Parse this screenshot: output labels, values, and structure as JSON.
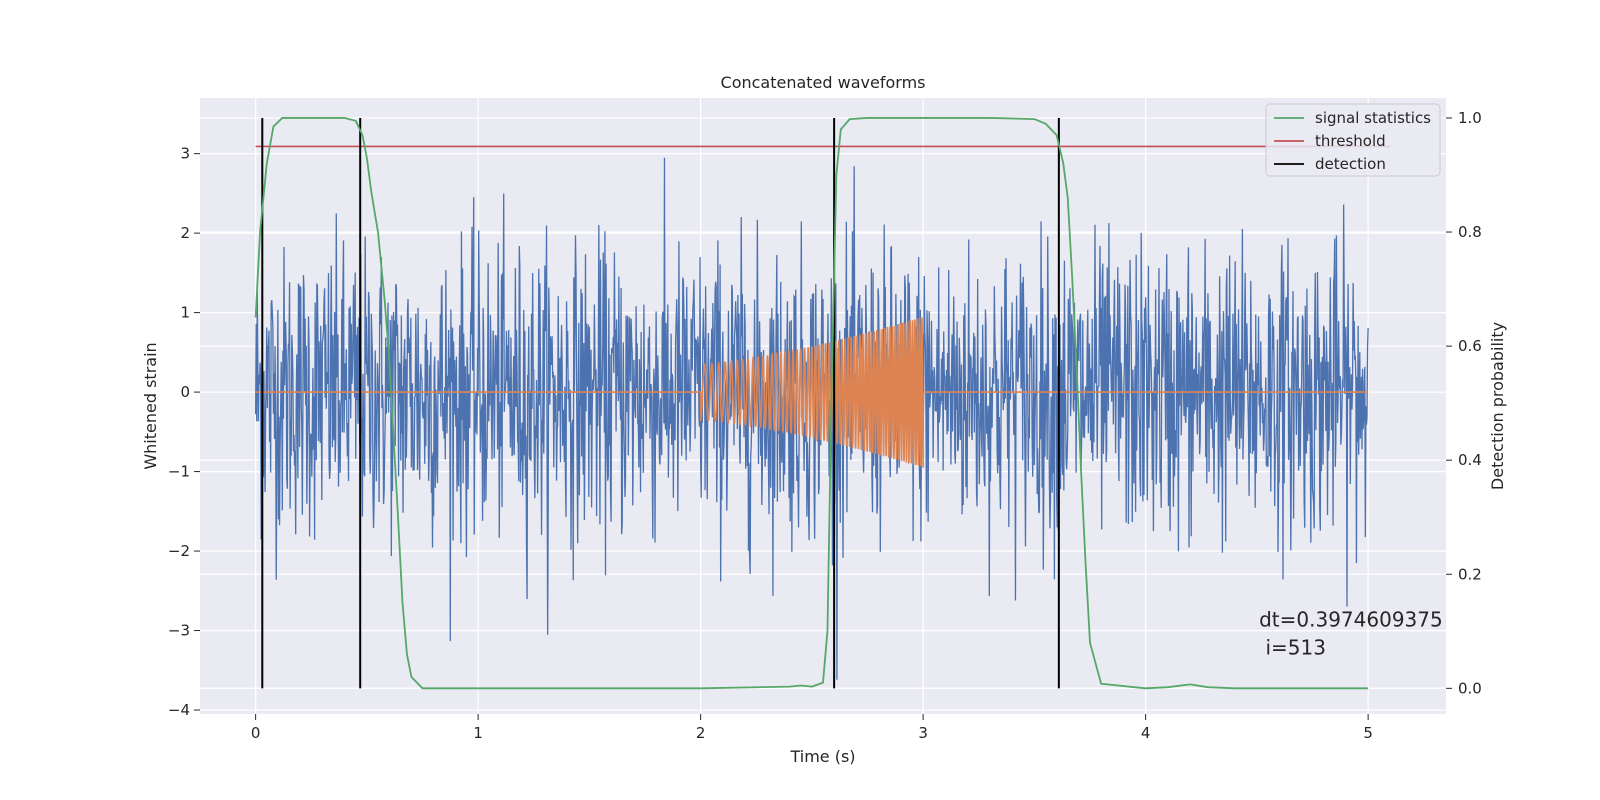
{
  "chart_data": {
    "type": "line",
    "title": "Concatenated waveforms",
    "xlabel": "Time (s)",
    "ylabel": "Whitened strain",
    "y2label": "Detection probability",
    "xlim": [
      -0.25,
      5.35
    ],
    "ylim": [
      -4.05,
      3.7
    ],
    "y2lim": [
      -0.045,
      1.035
    ],
    "x_ticks": [
      0,
      1,
      2,
      3,
      4,
      5
    ],
    "y_ticks": [
      -4,
      -3,
      -2,
      -1,
      0,
      1,
      2,
      3
    ],
    "y2_ticks": [
      0.0,
      0.2,
      0.4,
      0.6,
      0.8,
      1.0
    ],
    "grid": true,
    "legend_position": "top-right",
    "series": [
      {
        "name": "",
        "axis": "left",
        "color": "#4c72b0",
        "description_type": "noise",
        "x_range": [
          0,
          5
        ],
        "sample_count": 2000,
        "typical_amplitude": 1.2,
        "max_value": 3.2,
        "min_value": -3.7
      },
      {
        "name": "",
        "axis": "left",
        "color": "#dd8452",
        "description_type": "chirp",
        "x_range": [
          0,
          5
        ],
        "chirp_x_range": [
          2.0,
          3.0
        ],
        "amplitude_start": 0.35,
        "amplitude_end": 0.95
      },
      {
        "name": "signal statistics",
        "axis": "right",
        "color": "#55a868",
        "x": [
          0.0,
          0.02,
          0.05,
          0.08,
          0.12,
          0.2,
          0.3,
          0.4,
          0.45,
          0.48,
          0.5,
          0.52,
          0.55,
          0.58,
          0.6,
          0.62,
          0.64,
          0.66,
          0.68,
          0.7,
          0.75,
          0.8,
          1.0,
          1.5,
          2.0,
          2.4,
          2.45,
          2.5,
          2.55,
          2.57,
          2.59,
          2.61,
          2.63,
          2.67,
          2.75,
          3.0,
          3.3,
          3.5,
          3.55,
          3.6,
          3.63,
          3.65,
          3.67,
          3.69,
          3.71,
          3.73,
          3.75,
          3.8,
          4.0,
          4.1,
          4.2,
          4.28,
          4.4,
          5.0
        ],
        "y": [
          0.65,
          0.8,
          0.92,
          0.985,
          1.0,
          1.0,
          1.0,
          1.0,
          0.995,
          0.97,
          0.93,
          0.87,
          0.8,
          0.68,
          0.58,
          0.44,
          0.3,
          0.15,
          0.06,
          0.02,
          0.0,
          0.0,
          0.0,
          0.0,
          0.0,
          0.003,
          0.005,
          0.003,
          0.01,
          0.1,
          0.55,
          0.9,
          0.98,
          0.998,
          1.0,
          1.0,
          1.0,
          0.998,
          0.99,
          0.97,
          0.92,
          0.86,
          0.72,
          0.56,
          0.38,
          0.22,
          0.08,
          0.008,
          0.0,
          0.002,
          0.007,
          0.002,
          0.0,
          0.0
        ]
      },
      {
        "name": "threshold",
        "axis": "right",
        "color": "#c44e52",
        "x": [
          0.0,
          5.1
        ],
        "y": [
          0.95,
          0.95
        ]
      },
      {
        "name": "detection",
        "axis": "right",
        "color": "#000000",
        "type": "vlines",
        "x": [
          0.03,
          0.47,
          2.6,
          3.61
        ],
        "y_range": [
          0.0,
          1.0
        ]
      }
    ],
    "annotation": {
      "lines": [
        "dt=0.3974609375",
        " i=513"
      ],
      "x": 4.51,
      "y_line1": -2.95,
      "y_line2": -3.3
    }
  }
}
